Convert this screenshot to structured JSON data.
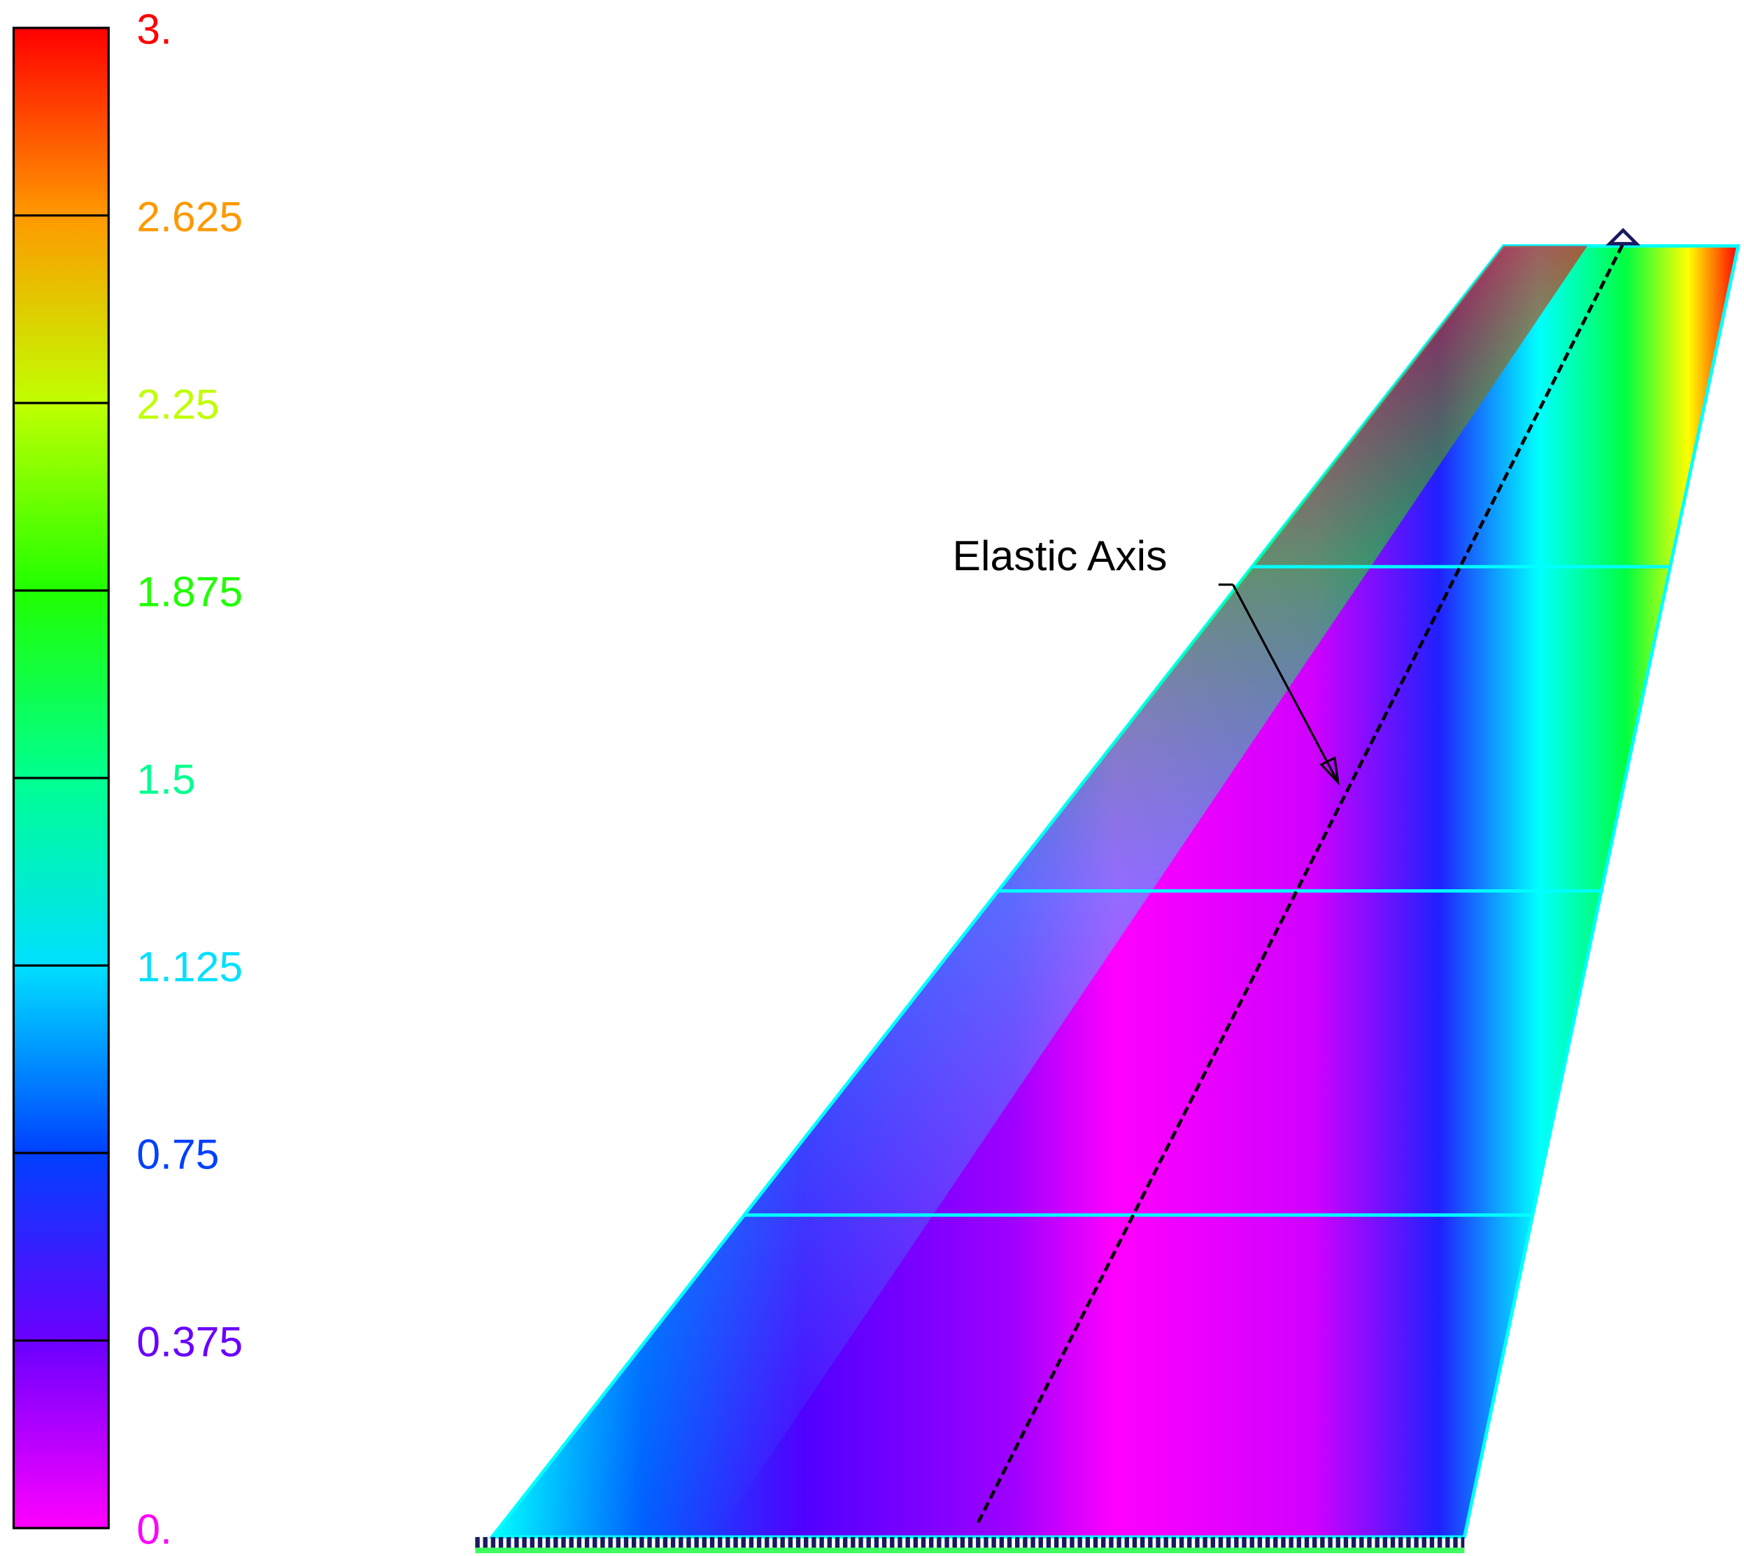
{
  "chart_data": {
    "type": "contour",
    "annotation": "Elastic Axis",
    "colorbar": {
      "lim": [
        0,
        3
      ],
      "ticks": [
        {
          "value": 0,
          "label": "0."
        },
        0.375,
        0.75,
        1.125,
        1.5,
        1.875,
        2.25,
        2.625,
        {
          "value": 3,
          "label": "3."
        }
      ],
      "colors": [
        "#ff00ff",
        "#6a00ff",
        "#0040ff",
        "#00e0ff",
        "#00ff90",
        "#20ff00",
        "#c0ff00",
        "#ff9900",
        "#ff0000"
      ]
    }
  }
}
